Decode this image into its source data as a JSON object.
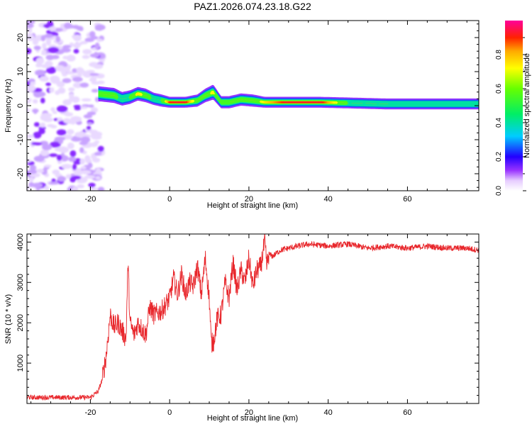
{
  "title": "PAZ1.2026.074.23.18.G22",
  "colors": {
    "snr_line": "#e8262b",
    "axis": "#000000"
  },
  "colorbar": {
    "label": "Normalized spectral amplitude",
    "ticks": [
      "0.0",
      "0.2",
      "0.4",
      "0.6",
      "0.8"
    ],
    "tick_values": [
      0.0,
      0.2,
      0.4,
      0.6,
      0.8
    ],
    "range": [
      0,
      1
    ]
  },
  "chart_data": [
    {
      "type": "heatmap",
      "id": "spectrogram",
      "xlabel": "Height of straight line (km)",
      "ylabel": "Frequency (Hz)",
      "xlim": [
        -36,
        78
      ],
      "ylim": [
        -25,
        25
      ],
      "x_ticks": [
        -20,
        0,
        20,
        40,
        60
      ],
      "x_tick_labels": [
        "-20",
        "0",
        "20",
        "40",
        "60"
      ],
      "y_ticks": [
        -20,
        -10,
        0,
        10,
        20
      ],
      "y_tick_labels": [
        "-20",
        "-10",
        "0",
        "10",
        "20"
      ],
      "noise_region": {
        "x_range": [
          -36,
          -17
        ],
        "y_range": [
          -25,
          25
        ],
        "amplitude": 0.15
      },
      "ridge": {
        "x": [
          -18,
          -14,
          -12,
          -10,
          -8,
          -6,
          -4,
          -2,
          0,
          4,
          7,
          9,
          11,
          13,
          15,
          18,
          21,
          24,
          30,
          38,
          45,
          55,
          65,
          78
        ],
        "freq": [
          3.5,
          3,
          2,
          2.5,
          3.5,
          3,
          2,
          1.5,
          1,
          1,
          1.5,
          3,
          4,
          1,
          1,
          1.8,
          1.5,
          1,
          1,
          1,
          0.8,
          0.5,
          0.5,
          0.5
        ],
        "amplitude": [
          0.55,
          0.55,
          0.45,
          0.5,
          0.75,
          0.6,
          0.45,
          0.5,
          0.9,
          0.95,
          0.55,
          0.6,
          0.7,
          0.5,
          0.55,
          0.6,
          0.55,
          0.75,
          0.95,
          0.95,
          0.5,
          0.4,
          0.5,
          0.45
        ],
        "width_hz": [
          2.2,
          2.2,
          2,
          2,
          2,
          2,
          1.8,
          1.8,
          1.6,
          1.6,
          1.8,
          2,
          2.2,
          1.8,
          1.8,
          1.8,
          1.8,
          1.6,
          1.6,
          1.6,
          1.6,
          1.6,
          1.6,
          1.6
        ]
      }
    },
    {
      "type": "line",
      "id": "snr",
      "xlabel": "Height of straight line (km)",
      "ylabel": "SNR (10 * v/v)",
      "xlim": [
        -36,
        78
      ],
      "ylim": [
        0,
        4200
      ],
      "x_ticks": [
        -20,
        0,
        20,
        40,
        60
      ],
      "x_tick_labels": [
        "-20",
        "0",
        "20",
        "40",
        "60"
      ],
      "y_ticks": [
        1000,
        2000,
        3000,
        4000
      ],
      "y_tick_labels": [
        "1000",
        "2000",
        "3000",
        "4000"
      ],
      "series": [
        {
          "name": "SNR",
          "x": [
            -36,
            -30,
            -25,
            -20,
            -18,
            -17,
            -16,
            -15,
            -14,
            -13,
            -12,
            -11,
            -10.5,
            -10,
            -9,
            -8,
            -6,
            -5,
            -4,
            -2,
            0,
            1,
            2,
            3,
            4,
            5,
            6,
            7,
            8,
            9,
            10,
            10.5,
            11,
            12,
            13,
            14,
            15,
            16,
            17,
            18,
            19,
            20,
            21,
            22,
            23,
            24,
            24.5,
            25,
            26,
            28,
            30,
            35,
            40,
            45,
            50,
            55,
            60,
            65,
            70,
            75,
            78
          ],
          "values": [
            150,
            150,
            150,
            150,
            300,
            600,
            1200,
            2200,
            1900,
            2000,
            1800,
            1600,
            3500,
            2000,
            1700,
            2000,
            1700,
            2400,
            2200,
            2300,
            2600,
            3100,
            2700,
            3200,
            2700,
            3000,
            2900,
            3400,
            2700,
            3600,
            2600,
            1500,
            1500,
            2100,
            2200,
            3000,
            2600,
            3500,
            2800,
            3300,
            3000,
            3600,
            2900,
            3300,
            3400,
            4000,
            3400,
            3700,
            3650,
            3800,
            3850,
            3950,
            3900,
            3950,
            3850,
            3900,
            3850,
            3900,
            3850,
            3850,
            3800
          ]
        }
      ]
    }
  ]
}
